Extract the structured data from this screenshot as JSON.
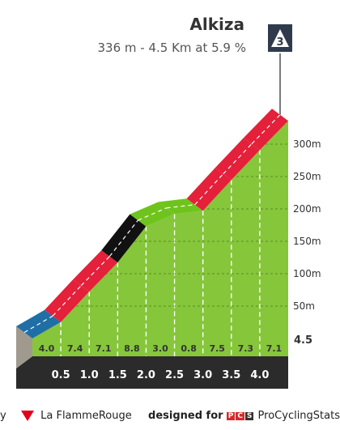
{
  "header": {
    "title": "Alkiza",
    "subtitle": "336 m - 4.5 Km at 5.9 %",
    "category": "3"
  },
  "chart_data": {
    "type": "area",
    "title": "Alkiza",
    "subtitle": "336 m - 4.5 Km at 5.9 %",
    "km_labels": [
      "0.5",
      "1.0",
      "1.5",
      "2.0",
      "2.5",
      "3.0",
      "3.5",
      "4.0"
    ],
    "gradients": [
      "4.0",
      "7.4",
      "7.1",
      "8.8",
      "3.0",
      "0.8",
      "7.5",
      "7.3",
      "7.1"
    ],
    "distance_km": [
      0,
      0.5,
      1.0,
      1.5,
      2.0,
      2.5,
      3.0,
      3.5,
      4.0,
      4.5
    ],
    "segment_gradients": [
      4.0,
      7.4,
      7.1,
      8.8,
      3.0,
      0.8,
      7.5,
      7.3,
      7.1
    ],
    "elevation_ticks": [
      "50m",
      "100m",
      "150m",
      "200m",
      "250m",
      "300m"
    ],
    "elevation_tick_values": [
      50,
      100,
      150,
      200,
      250,
      300
    ],
    "ylim": [
      0,
      336
    ],
    "xlim": [
      0,
      4.5
    ],
    "end_distance_label": "4.5",
    "colors": {
      "blue": "#1f6fa6",
      "red": "#e4203a",
      "black": "#111111",
      "green": "#6ec41c",
      "green_fill": "#86c63a",
      "base": "#a09a8e",
      "dark_base": "#2b2b2b"
    }
  },
  "footer": {
    "left_prefix": "y",
    "left_brand": "La FlammeRouge",
    "right_prefix": "designed for",
    "right_brand": "ProCyclingStats",
    "pcs_letters": [
      "P",
      "C",
      "S"
    ]
  }
}
